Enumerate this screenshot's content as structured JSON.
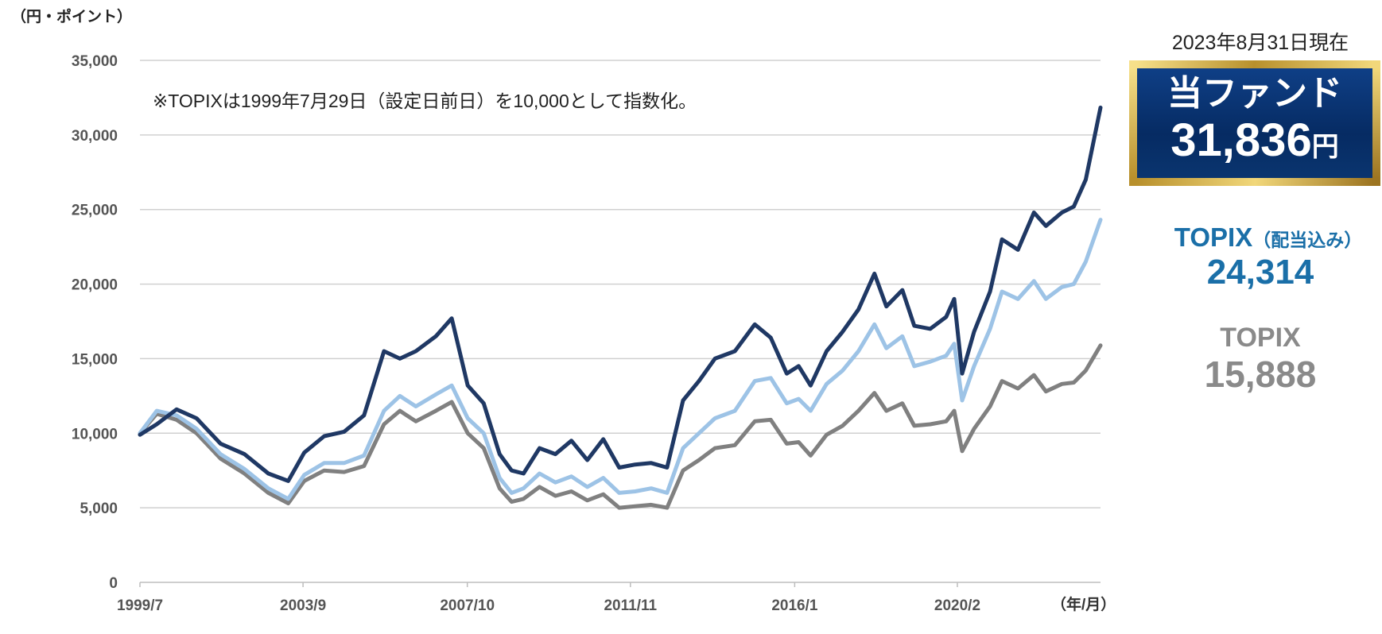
{
  "chart_data": {
    "type": "line",
    "title": "",
    "ylabel": "（円・ポイント）",
    "xlabel": "（年/月）",
    "note": "※TOPIXは1999年7月29日（設定日前日）を10,000として指数化。",
    "ylim": [
      0,
      35000
    ],
    "yticks": [
      0,
      5000,
      10000,
      15000,
      20000,
      25000,
      30000,
      35000
    ],
    "ytick_labels": [
      "0",
      "5,000",
      "10,000",
      "15,000",
      "20,000",
      "25,000",
      "30,000",
      "35,000"
    ],
    "xlim": [
      1999.58,
      2023.67
    ],
    "xticks": [
      1999.58,
      2003.67,
      2007.79,
      2011.88,
      2016.0,
      2020.08
    ],
    "xtick_labels": [
      "1999/7",
      "2003/9",
      "2007/10",
      "2011/11",
      "2016/1",
      "2020/2"
    ],
    "grid": true,
    "series": [
      {
        "name": "当ファンド",
        "color": "#1f3864",
        "x": [
          1999.58,
          2000.0,
          2000.5,
          2001.0,
          2001.6,
          2002.2,
          2002.8,
          2003.3,
          2003.7,
          2004.2,
          2004.7,
          2005.2,
          2005.7,
          2006.1,
          2006.5,
          2007.0,
          2007.4,
          2007.8,
          2008.2,
          2008.6,
          2008.9,
          2009.2,
          2009.6,
          2010.0,
          2010.4,
          2010.8,
          2011.2,
          2011.6,
          2012.0,
          2012.4,
          2012.8,
          2013.2,
          2013.6,
          2014.0,
          2014.5,
          2015.0,
          2015.4,
          2015.8,
          2016.1,
          2016.4,
          2016.8,
          2017.2,
          2017.6,
          2018.0,
          2018.3,
          2018.7,
          2019.0,
          2019.4,
          2019.8,
          2020.0,
          2020.2,
          2020.5,
          2020.9,
          2021.2,
          2021.6,
          2022.0,
          2022.3,
          2022.7,
          2023.0,
          2023.3,
          2023.67
        ],
        "values": [
          9900,
          10600,
          11600,
          11000,
          9300,
          8600,
          7300,
          6800,
          8700,
          9800,
          10100,
          11200,
          15500,
          15000,
          15500,
          16500,
          17700,
          13200,
          12000,
          8600,
          7500,
          7300,
          9000,
          8600,
          9500,
          8200,
          9600,
          7700,
          7900,
          8000,
          7700,
          12200,
          13500,
          15000,
          15500,
          17300,
          16400,
          14000,
          14500,
          13200,
          15500,
          16800,
          18300,
          20700,
          18500,
          19600,
          17200,
          17000,
          17800,
          19000,
          14000,
          16800,
          19500,
          23000,
          22300,
          24800,
          23900,
          24800,
          25200,
          27000,
          31836
        ]
      },
      {
        "name": "TOPIX（配当込み）",
        "color": "#9dc3e6",
        "x": [
          1999.58,
          2000.0,
          2000.5,
          2001.0,
          2001.6,
          2002.2,
          2002.8,
          2003.3,
          2003.7,
          2004.2,
          2004.7,
          2005.2,
          2005.7,
          2006.1,
          2006.5,
          2007.0,
          2007.4,
          2007.8,
          2008.2,
          2008.6,
          2008.9,
          2009.2,
          2009.6,
          2010.0,
          2010.4,
          2010.8,
          2011.2,
          2011.6,
          2012.0,
          2012.4,
          2012.8,
          2013.2,
          2013.6,
          2014.0,
          2014.5,
          2015.0,
          2015.4,
          2015.8,
          2016.1,
          2016.4,
          2016.8,
          2017.2,
          2017.6,
          2018.0,
          2018.3,
          2018.7,
          2019.0,
          2019.4,
          2019.8,
          2020.0,
          2020.2,
          2020.5,
          2020.9,
          2021.2,
          2021.6,
          2022.0,
          2022.3,
          2022.7,
          2023.0,
          2023.3,
          2023.67
        ],
        "values": [
          10000,
          11500,
          11200,
          10300,
          8600,
          7600,
          6300,
          5600,
          7200,
          8000,
          8000,
          8500,
          11500,
          12500,
          11800,
          12600,
          13200,
          11000,
          10000,
          7000,
          6000,
          6300,
          7300,
          6700,
          7100,
          6400,
          7000,
          6000,
          6100,
          6300,
          6000,
          9000,
          10000,
          11000,
          11500,
          13500,
          13700,
          12000,
          12300,
          11500,
          13300,
          14200,
          15500,
          17300,
          15700,
          16500,
          14500,
          14800,
          15200,
          16000,
          12200,
          14500,
          17000,
          19500,
          19000,
          20200,
          19000,
          19800,
          20000,
          21500,
          24314
        ]
      },
      {
        "name": "TOPIX",
        "color": "#808080",
        "x": [
          1999.58,
          2000.0,
          2000.5,
          2001.0,
          2001.6,
          2002.2,
          2002.8,
          2003.3,
          2003.7,
          2004.2,
          2004.7,
          2005.2,
          2005.7,
          2006.1,
          2006.5,
          2007.0,
          2007.4,
          2007.8,
          2008.2,
          2008.6,
          2008.9,
          2009.2,
          2009.6,
          2010.0,
          2010.4,
          2010.8,
          2011.2,
          2011.6,
          2012.0,
          2012.4,
          2012.8,
          2013.2,
          2013.6,
          2014.0,
          2014.5,
          2015.0,
          2015.4,
          2015.8,
          2016.1,
          2016.4,
          2016.8,
          2017.2,
          2017.6,
          2018.0,
          2018.3,
          2018.7,
          2019.0,
          2019.4,
          2019.8,
          2020.0,
          2020.2,
          2020.5,
          2020.9,
          2021.2,
          2021.6,
          2022.0,
          2022.3,
          2022.7,
          2023.0,
          2023.3,
          2023.67
        ],
        "values": [
          10000,
          11300,
          10900,
          10000,
          8300,
          7300,
          6000,
          5300,
          6800,
          7500,
          7400,
          7800,
          10600,
          11500,
          10800,
          11500,
          12100,
          10000,
          9000,
          6300,
          5400,
          5600,
          6400,
          5800,
          6100,
          5500,
          5900,
          5000,
          5100,
          5200,
          5000,
          7500,
          8200,
          9000,
          9200,
          10800,
          10900,
          9300,
          9400,
          8500,
          9900,
          10500,
          11500,
          12700,
          11500,
          12000,
          10500,
          10600,
          10800,
          11500,
          8800,
          10300,
          11800,
          13500,
          13000,
          13900,
          12800,
          13300,
          13400,
          14200,
          15888
        ]
      }
    ]
  },
  "panel": {
    "asof": "2023年8月31日現在",
    "fund_name": "当ファンド",
    "fund_value": "31,836",
    "fund_unit": "円",
    "topix_div_name": "TOPIX",
    "topix_div_suffix": "（配当込み）",
    "topix_div_value": "24,314",
    "topix_name": "TOPIX",
    "topix_value": "15,888"
  }
}
